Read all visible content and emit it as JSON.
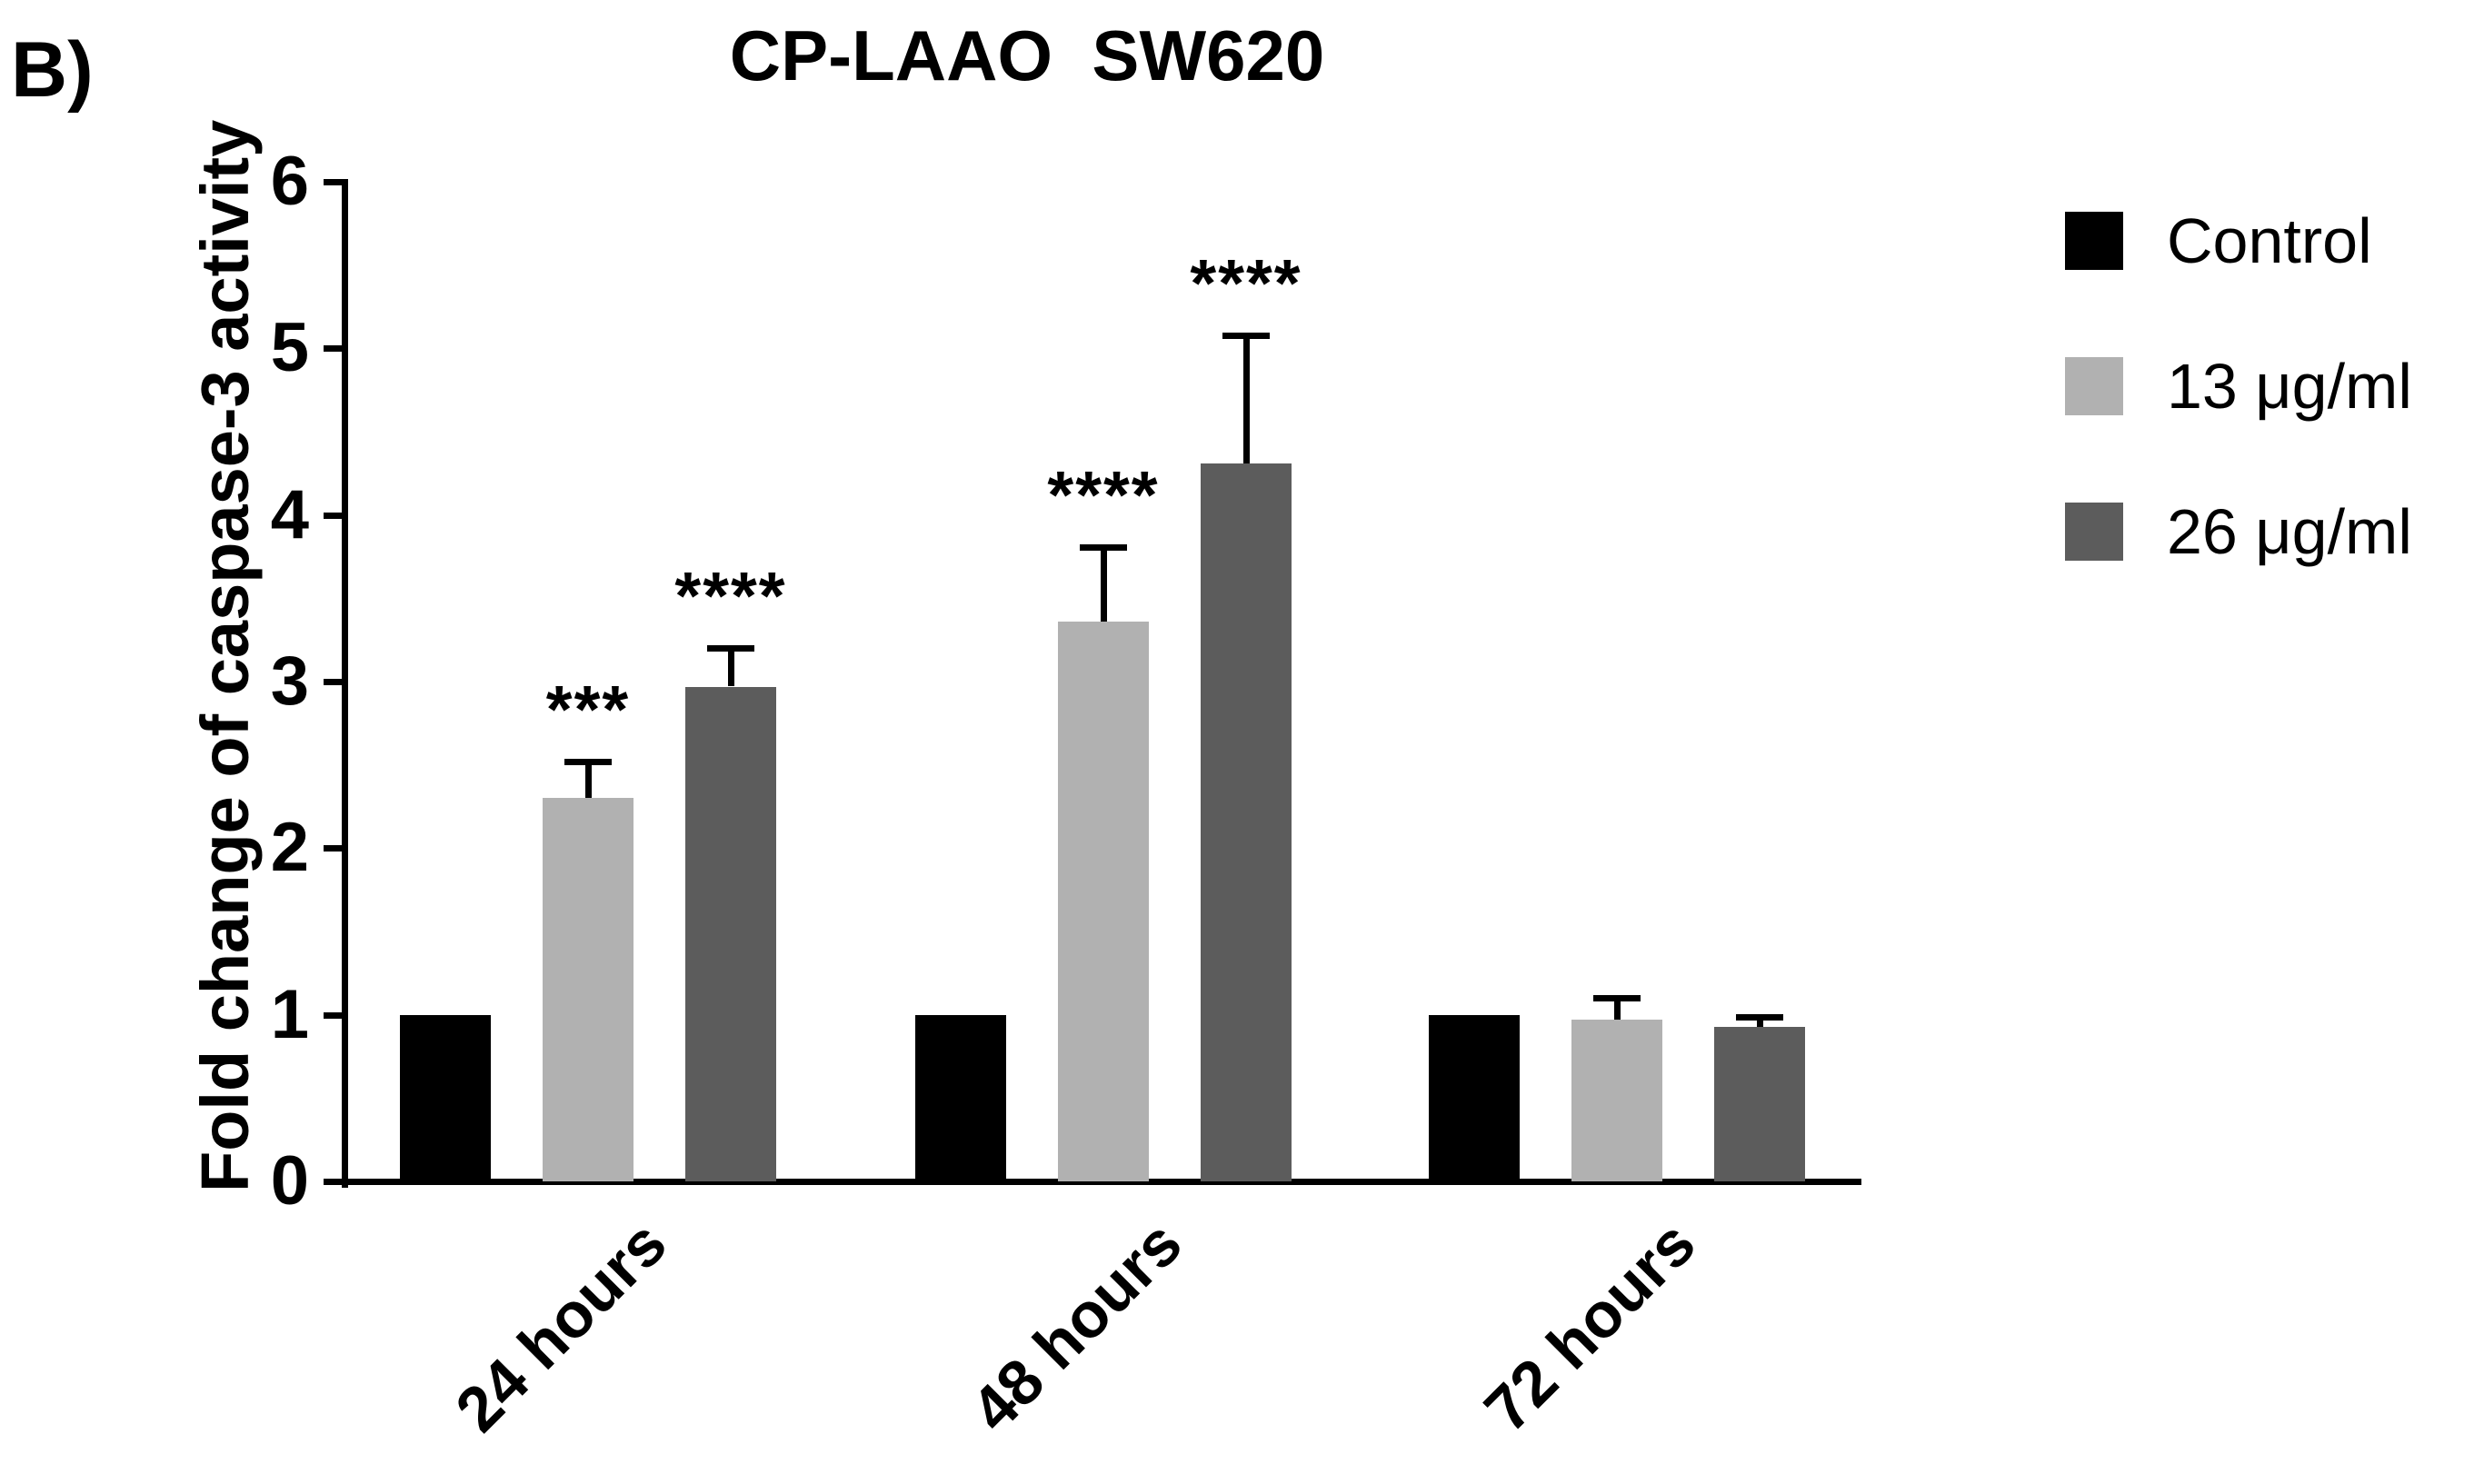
{
  "panel_label": "B)",
  "chart_data": {
    "type": "bar",
    "title": "CP-LAAO  SW620",
    "xlabel": "",
    "ylabel": "Fold change of caspase-3 activity",
    "ylim": [
      0,
      6
    ],
    "ytick_step": 1,
    "grid": false,
    "legend_position": "right",
    "categories": [
      "24 hours",
      "48 hours",
      "72 hours"
    ],
    "series": [
      {
        "name": "Control",
        "color": "#000000",
        "values": [
          1.0,
          1.0,
          1.0
        ],
        "errors": [
          0,
          0,
          0
        ],
        "significance": [
          "",
          "",
          ""
        ]
      },
      {
        "name": "13 μg/ml",
        "color": "#b1b1b1",
        "values": [
          2.3,
          3.36,
          0.97
        ],
        "errors": [
          0.22,
          0.45,
          0.13
        ],
        "significance": [
          "***",
          "****",
          ""
        ]
      },
      {
        "name": "26 μg/ml",
        "color": "#5c5c5c",
        "values": [
          2.97,
          4.31,
          0.93
        ],
        "errors": [
          0.23,
          0.77,
          0.06
        ],
        "significance": [
          "****",
          "****",
          ""
        ]
      }
    ]
  }
}
